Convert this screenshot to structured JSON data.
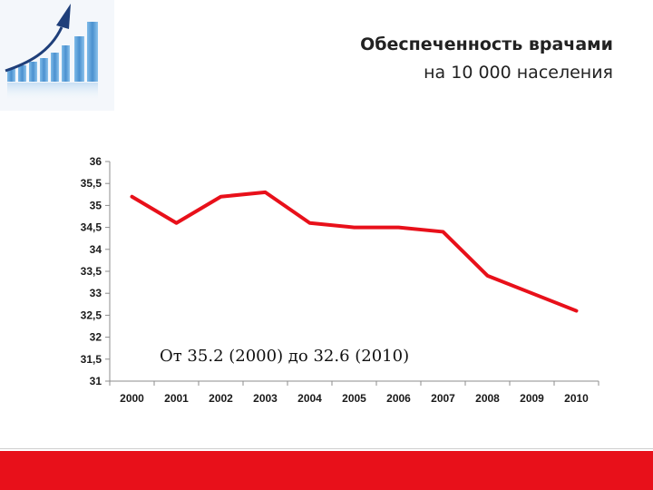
{
  "header": {
    "title_line1": "Обеспеченность врачами",
    "title_line2": "на 10 000 населения"
  },
  "annotation": "От 35.2 (2000)  до 32.6 (2010)",
  "colors": {
    "series_line": "#e8101a",
    "footer_band": "#e8101a",
    "logo_bars": "#5aa0d8",
    "logo_arrow": "#1f3f7a"
  },
  "logo": {
    "icon": "growth-bar-chart-arrow-icon"
  },
  "chart_data": {
    "type": "line",
    "title": "",
    "xlabel": "",
    "ylabel": "",
    "x": [
      "2000",
      "2001",
      "2002",
      "2003",
      "2004",
      "2005",
      "2006",
      "2007",
      "2008",
      "2009",
      "2010"
    ],
    "series": [
      {
        "values": [
          35.2,
          34.6,
          35.2,
          35.3,
          34.6,
          34.5,
          34.5,
          34.4,
          33.4,
          33.0,
          32.6
        ]
      }
    ],
    "ylim": [
      31,
      36
    ],
    "yticks": [
      "36",
      "35,5",
      "35",
      "34,5",
      "34",
      "33,5",
      "33",
      "32,5",
      "32",
      "31,5",
      "31"
    ],
    "grid": false,
    "legend": "none"
  }
}
